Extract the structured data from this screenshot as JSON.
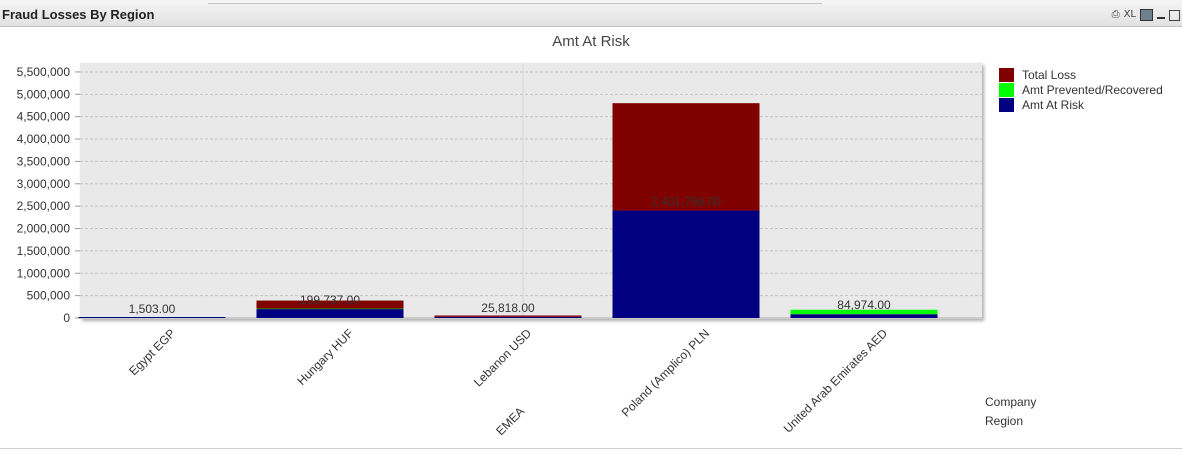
{
  "window": {
    "title": "Fraud Losses By Region",
    "icons": [
      {
        "name": "print-icon",
        "label": ""
      },
      {
        "name": "xl-icon",
        "label": "XL"
      },
      {
        "name": "chart-toggle-icon",
        "label": ""
      },
      {
        "name": "minimize-icon",
        "label": ""
      },
      {
        "name": "maximize-icon",
        "label": ""
      }
    ]
  },
  "dimensions": {
    "company_label": "Company",
    "region_label": "Region",
    "region_value": "EMEA"
  },
  "colors": {
    "total_loss": "#800000",
    "amt_prevented": "#00ff00",
    "amt_at_risk": "#000080",
    "plot_bg": "#e9e9e9"
  },
  "chart_data": {
    "type": "bar",
    "stacked": true,
    "title": "Amt At Risk",
    "xlabel": "",
    "ylabel": "",
    "ylim": [
      0,
      5700000
    ],
    "yticks": [
      0,
      500000,
      1000000,
      1500000,
      2000000,
      2500000,
      3000000,
      3500000,
      4000000,
      4500000,
      5000000,
      5500000
    ],
    "ytick_labels": [
      "0",
      "500,000",
      "1,000,000",
      "1,500,000",
      "2,000,000",
      "2,500,000",
      "3,000,000",
      "3,500,000",
      "4,000,000",
      "4,500,000",
      "5,000,000",
      "5,500,000"
    ],
    "grid": true,
    "legend_position": "top-right",
    "categories": [
      "Egypt EGP",
      "Hungary HUF",
      "Lebanon USD",
      "Poland (Amplico) PLN",
      "United Arab Emirates AED"
    ],
    "series": [
      {
        "name": "Amt At Risk",
        "color": "#000080",
        "values": [
          1503,
          199737,
          25818,
          2401796,
          84974
        ]
      },
      {
        "name": "Amt Prevented/Recovered",
        "color": "#00ff00",
        "values": [
          0,
          10000,
          0,
          0,
          100000
        ]
      },
      {
        "name": "Total Loss",
        "color": "#800000",
        "values": [
          0,
          180000,
          30000,
          2400000,
          0
        ]
      }
    ],
    "legend_order": [
      "Total Loss",
      "Amt Prevented/Recovered",
      "Amt At Risk"
    ],
    "data_labels": [
      "1,503.00",
      "199,737.00",
      "25,818.00",
      "2,401,796.00",
      "84,974.00"
    ]
  }
}
